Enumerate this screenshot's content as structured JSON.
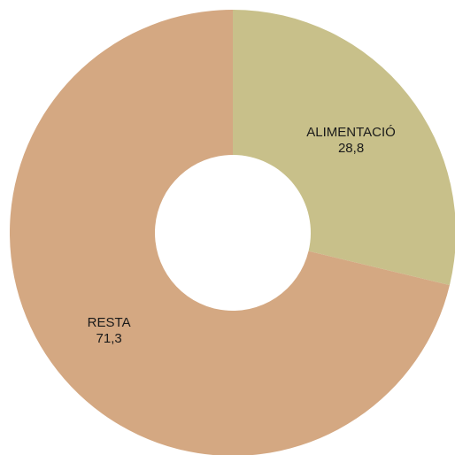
{
  "chart_data": {
    "type": "pie",
    "donut": true,
    "title": "",
    "legend": "none",
    "categories": [
      "ALIMENTACIÓ",
      "RESTA"
    ],
    "values": [
      28.8,
      71.3
    ],
    "value_labels": [
      "28,8",
      "71,3"
    ],
    "colors": [
      "#c8c08a",
      "#d4a882"
    ]
  }
}
